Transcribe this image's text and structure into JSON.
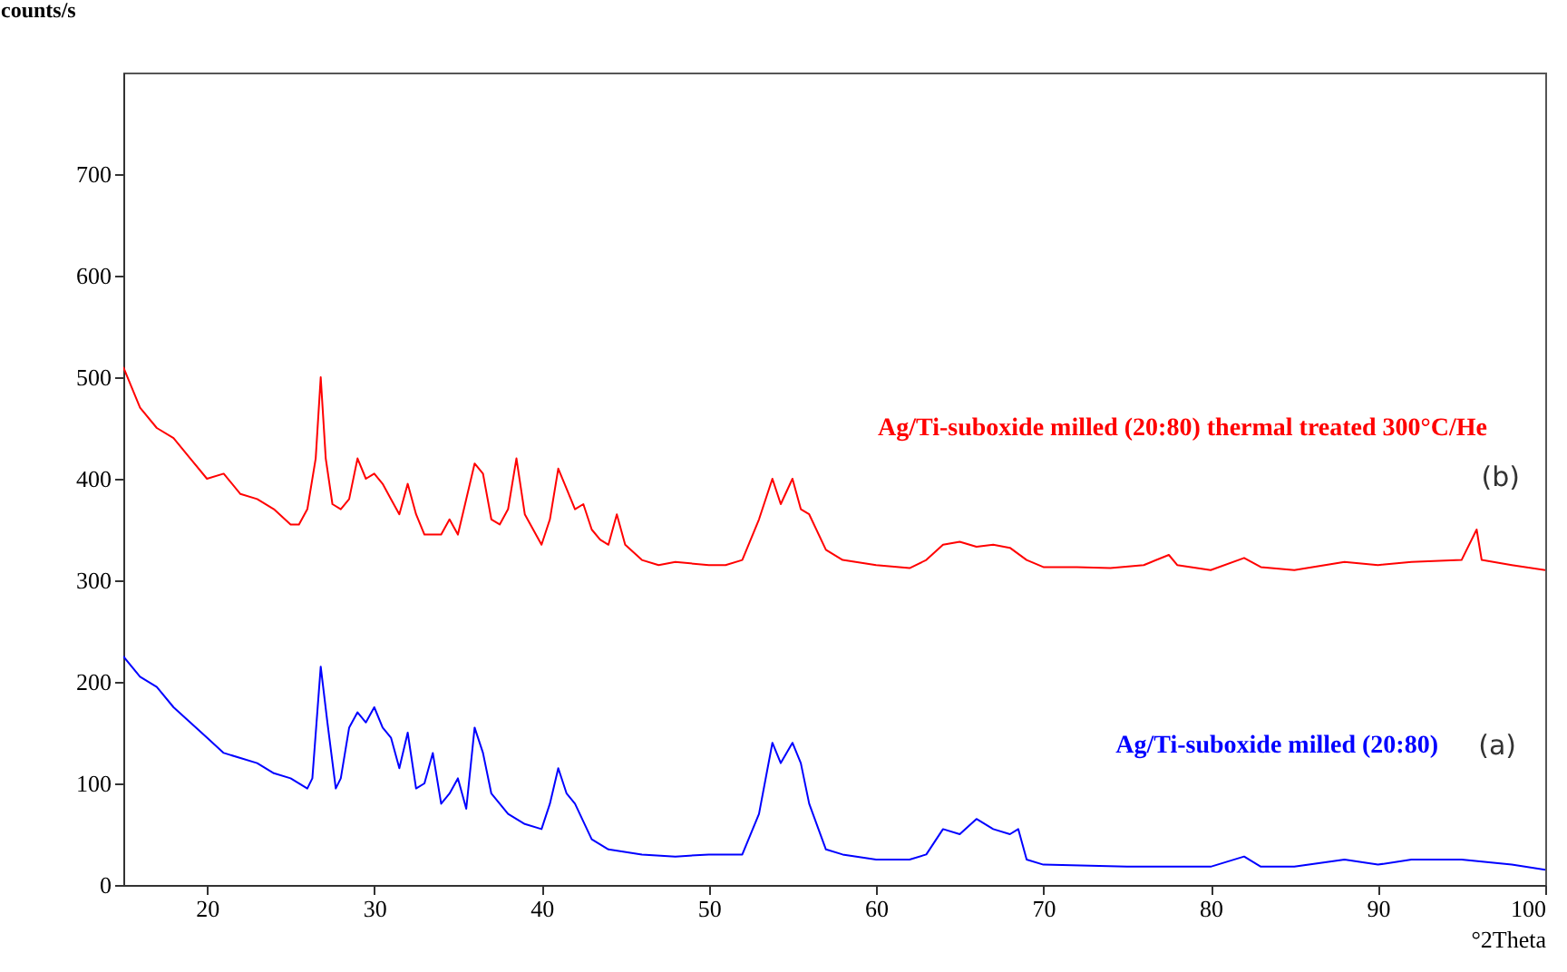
{
  "chart_data": {
    "type": "line",
    "xlabel": "°2Theta",
    "ylabel": "counts/s",
    "xlim": [
      15,
      100
    ],
    "ylim": [
      0,
      800
    ],
    "xticks": [
      20,
      30,
      40,
      50,
      60,
      70,
      80,
      90,
      100
    ],
    "yticks": [
      0,
      100,
      200,
      300,
      400,
      500,
      600,
      700
    ],
    "grid": false,
    "legend": false,
    "marker": "none",
    "line_style": "solid",
    "annotations": [
      "(b)",
      "(a)"
    ],
    "series": [
      {
        "name": "Ag/Ti-suboxide milled (20:80) thermal treated 300°C/He",
        "color": "#ff0000",
        "x": [
          15,
          16,
          17,
          18,
          19,
          20,
          21,
          22,
          23,
          24,
          25,
          25.5,
          26,
          26.5,
          26.8,
          27.1,
          27.5,
          28,
          28.5,
          29,
          29.5,
          30,
          30.5,
          31,
          31.5,
          32,
          32.5,
          33,
          34,
          34.5,
          35,
          35.5,
          36,
          36.5,
          37,
          37.5,
          38,
          38.5,
          39,
          39.5,
          40,
          40.5,
          41,
          41.5,
          42,
          42.5,
          43,
          43.5,
          44,
          44.5,
          45,
          46,
          47,
          48,
          50,
          51,
          52,
          53,
          53.8,
          54.3,
          55,
          55.5,
          56,
          57,
          58,
          60,
          62,
          63,
          64,
          65,
          66,
          67,
          68,
          69,
          70,
          72,
          74,
          76,
          77.5,
          78,
          80,
          82,
          83,
          85,
          88,
          90,
          92,
          95,
          95.9,
          96.2,
          98,
          100
        ],
        "values": [
          510,
          470,
          450,
          440,
          420,
          400,
          405,
          385,
          380,
          370,
          355,
          355,
          370,
          420,
          500,
          420,
          375,
          370,
          380,
          420,
          400,
          405,
          395,
          380,
          365,
          395,
          365,
          345,
          345,
          360,
          345,
          380,
          415,
          405,
          360,
          355,
          370,
          420,
          365,
          350,
          335,
          360,
          410,
          390,
          370,
          375,
          350,
          340,
          335,
          365,
          335,
          320,
          315,
          318,
          315,
          315,
          320,
          360,
          400,
          375,
          400,
          370,
          365,
          330,
          320,
          315,
          312,
          320,
          335,
          338,
          333,
          335,
          332,
          320,
          313,
          313,
          312,
          315,
          325,
          315,
          310,
          322,
          313,
          310,
          318,
          315,
          318,
          320,
          350,
          320,
          315,
          310
        ]
      },
      {
        "name": "Ag/Ti-suboxide milled (20:80)",
        "color": "#0000ff",
        "x": [
          15,
          16,
          17,
          18,
          19,
          20,
          21,
          22,
          23,
          24,
          25,
          26,
          26.3,
          26.8,
          27.2,
          27.7,
          28,
          28.5,
          29,
          29.5,
          30,
          30.5,
          31,
          31.5,
          32,
          32.5,
          33,
          33.5,
          34,
          34.5,
          35,
          35.5,
          36,
          36.5,
          37,
          38,
          39,
          40,
          40.5,
          41,
          41.5,
          42,
          43,
          44,
          46,
          48,
          50,
          52,
          53,
          53.8,
          54.3,
          55,
          55.5,
          56,
          57,
          58,
          60,
          62,
          63,
          64,
          65,
          66,
          67,
          68,
          68.5,
          69,
          70,
          75,
          80,
          82,
          83,
          85,
          88,
          90,
          92,
          95,
          98,
          100
        ],
        "values": [
          225,
          205,
          195,
          175,
          160,
          145,
          130,
          125,
          120,
          110,
          105,
          95,
          105,
          215,
          160,
          95,
          105,
          155,
          170,
          160,
          175,
          155,
          145,
          115,
          150,
          95,
          100,
          130,
          80,
          90,
          105,
          75,
          155,
          130,
          90,
          70,
          60,
          55,
          80,
          115,
          90,
          80,
          45,
          35,
          30,
          28,
          30,
          30,
          70,
          140,
          120,
          140,
          120,
          80,
          35,
          30,
          25,
          25,
          30,
          55,
          50,
          65,
          55,
          50,
          55,
          25,
          20,
          18,
          18,
          28,
          18,
          18,
          25,
          20,
          25,
          25,
          20,
          15
        ]
      }
    ]
  }
}
